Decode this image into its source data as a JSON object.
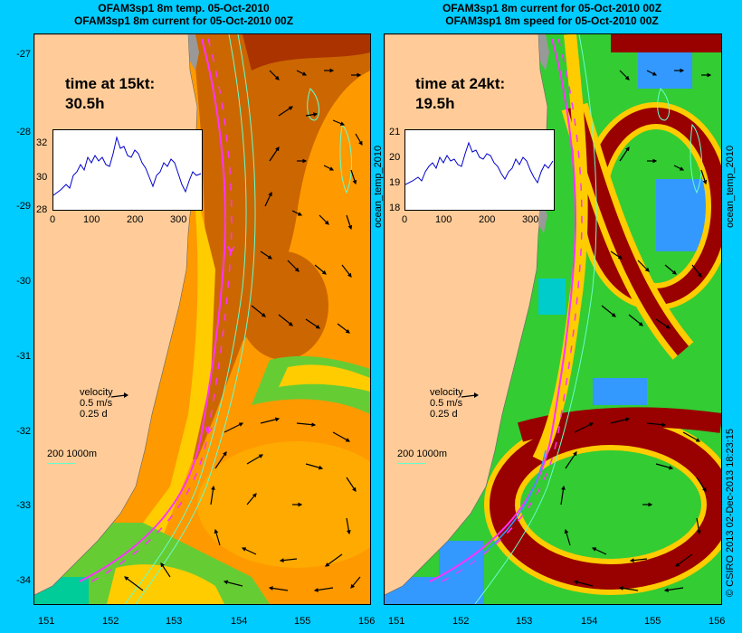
{
  "left_panel": {
    "title_line1": "OFAM3sp1 8m temp. 05-Oct-2010",
    "title_line2": "OFAM3sp1 8m current for 05-Oct-2010 00Z",
    "time_label": "time at 15kt:",
    "time_value": "30.5h",
    "inset_y_ticks": [
      "32",
      "30",
      "28"
    ],
    "inset_x_ticks": [
      "0",
      "100",
      "200",
      "300"
    ],
    "side_label": "ocean_temp_2010",
    "velocity_label": "velocity",
    "velocity_speed": "0.5 m/s",
    "velocity_days": "0.25 d",
    "contour_label": "200  1000m"
  },
  "right_panel": {
    "title_line1": "OFAM3sp1 8m current for 05-Oct-2010 00Z",
    "title_line2": "OFAM3sp1 8m speed for 05-Oct-2010 00Z",
    "time_label": "time at 24kt:",
    "time_value": "19.5h",
    "inset_y_ticks": [
      "21",
      "20",
      "19",
      "18"
    ],
    "inset_x_ticks": [
      "0",
      "100",
      "200",
      "300"
    ],
    "side_label": "ocean_temp_2010",
    "velocity_label": "velocity",
    "velocity_speed": "0.5 m/s",
    "velocity_days": "0.25 d",
    "contour_label": "200  1000m"
  },
  "y_ticks": [
    "-27",
    "-28",
    "-29",
    "-30",
    "-31",
    "-32",
    "-33",
    "-34"
  ],
  "x_ticks": [
    "151",
    "152",
    "153",
    "154",
    "155",
    "156"
  ],
  "credit": "© CSIRO 2013   02-Dec-2013 18:23:15",
  "colors": {
    "background": "#00ccff",
    "land": "#ffcc99",
    "temp_hot": "#cc6600",
    "temp_warm": "#ff9900",
    "temp_mid": "#ffcc00",
    "temp_cool": "#66cc33",
    "speed_high": "#990000",
    "speed_mid": "#33cc33",
    "speed_low": "#3399ff",
    "track": "#ff33ff",
    "contour": "#66ffcc"
  }
}
